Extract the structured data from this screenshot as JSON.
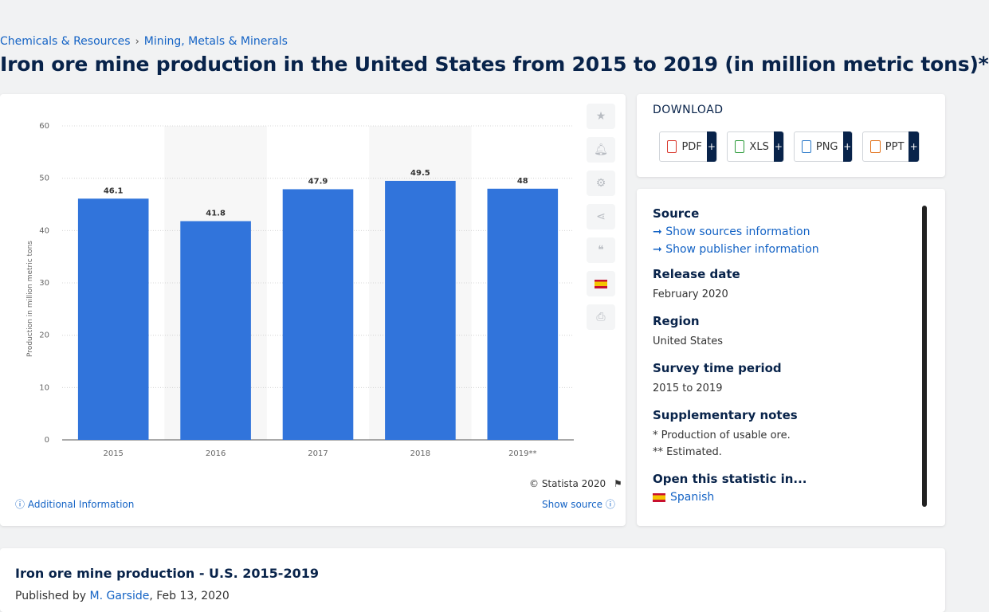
{
  "breadcrumb": {
    "items": [
      "Chemicals & Resources",
      "Mining, Metals & Minerals"
    ],
    "separator": "›"
  },
  "page_title": "Iron ore mine production in the United States from 2015 to 2019 (in million metric tons)*",
  "chart_data": {
    "type": "bar",
    "categories": [
      "2015",
      "2016",
      "2017",
      "2018",
      "2019**"
    ],
    "values": [
      46.1,
      41.8,
      47.9,
      49.5,
      48
    ],
    "value_labels": [
      "46.1",
      "41.8",
      "47.9",
      "49.5",
      "48"
    ],
    "ylabel": "Production in million metric tons",
    "ylim": [
      0,
      60
    ],
    "yticks": [
      0,
      10,
      20,
      30,
      40,
      50,
      60
    ],
    "grid": true,
    "bar_color": "#3174db",
    "alt_band_color": "#f7f7f7"
  },
  "chart_footer": {
    "copyright": "© Statista 2020",
    "additional_info": "Additional Information",
    "show_source": "Show source"
  },
  "download": {
    "title": "DOWNLOAD",
    "formats": [
      {
        "label": "PDF",
        "color": "#d9362b"
      },
      {
        "label": "XLS",
        "color": "#2e9c3c"
      },
      {
        "label": "PNG",
        "color": "#2a79c9"
      },
      {
        "label": "PPT",
        "color": "#e2731c"
      }
    ],
    "plus": "+"
  },
  "info": {
    "source_label": "Source",
    "show_sources": "Show sources information",
    "show_publisher": "Show publisher information",
    "release_label": "Release date",
    "release_value": "February 2020",
    "region_label": "Region",
    "region_value": "United States",
    "survey_label": "Survey time period",
    "survey_value": "2015 to 2019",
    "notes_label": "Supplementary notes",
    "note_1": "* Production of usable ore.",
    "note_2": "** Estimated.",
    "open_label": "Open this statistic in...",
    "open_language": "Spanish"
  },
  "footer": {
    "title": "Iron ore mine production - U.S. 2015-2019",
    "published_by": "Published by",
    "author": "M. Garside",
    "date": ", Feb 13, 2020"
  },
  "toolbar": {
    "icons": [
      "star-icon",
      "bell-icon",
      "gear-icon",
      "share-icon",
      "quote-icon",
      "flag-es-icon",
      "print-icon"
    ]
  }
}
